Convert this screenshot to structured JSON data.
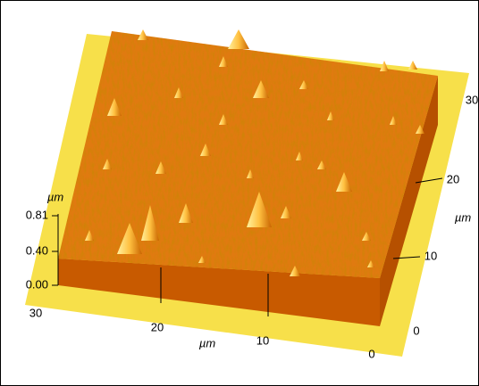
{
  "z_axis": {
    "unit": "µm",
    "ticks": [
      "0.81",
      "0.40",
      "0.00"
    ]
  },
  "x_axis": {
    "unit": "µm",
    "ticks": [
      "30",
      "20",
      "10",
      "0"
    ]
  },
  "y_axis": {
    "unit": "µm",
    "ticks": [
      "0",
      "10",
      "20",
      "30"
    ]
  }
}
